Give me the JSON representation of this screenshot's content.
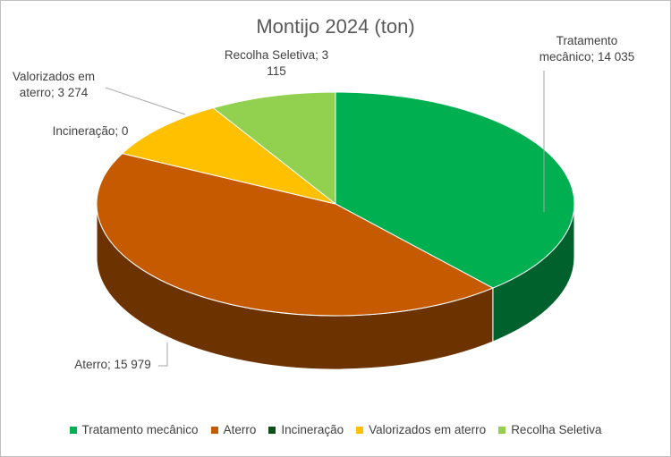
{
  "chart_data": {
    "type": "pie",
    "title": "Montijo 2024 (ton)",
    "categories": [
      "Tratamento mecânico",
      "Aterro",
      "Incineração",
      "Valorizados em aterro",
      "Recolha Seletiva"
    ],
    "values": [
      14035,
      15979,
      0,
      3274,
      3115
    ],
    "value_labels": [
      "Tratamento mecânico; 14 035",
      "Aterro; 15 979",
      "Incineração; 0",
      "Valorizados em aterro; 3 274",
      "Recolha Seletiva; 3 115"
    ],
    "colors": [
      "#00b050",
      "#c55a00",
      "#0b4d1b",
      "#ffc000",
      "#92d050"
    ],
    "legend": "bottom"
  }
}
